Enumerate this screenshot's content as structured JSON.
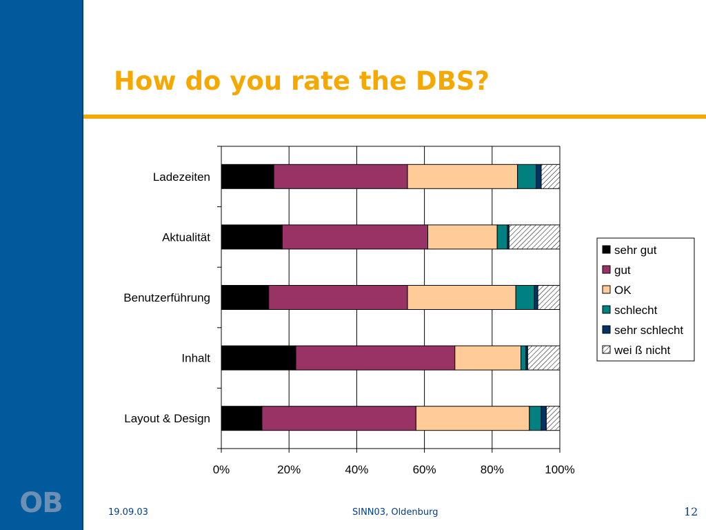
{
  "slide": {
    "title": "How do you rate the DBS?",
    "logo": "OB",
    "footer_date": "19.09.03",
    "footer_center": "SINN03, Oldenburg",
    "page_number": "12",
    "colors": {
      "sidebar": "#005A9C",
      "title": "#F5A800",
      "rule": "#F5A800",
      "footer_text": "#003E8C"
    }
  },
  "chart_data": {
    "type": "bar",
    "orientation": "horizontal",
    "stacked": true,
    "percent_stacked": true,
    "categories": [
      "Ladezeiten",
      "Aktualität",
      "Benutzerführung",
      "Inhalt",
      "Layout & Design"
    ],
    "series": [
      {
        "name": "sehr gut",
        "color": "#000000",
        "values": [
          15.5,
          18,
          14,
          22,
          12
        ]
      },
      {
        "name": "gut",
        "color": "#993366",
        "values": [
          39.5,
          43,
          41,
          47,
          45.5
        ]
      },
      {
        "name": "OK",
        "color": "#FFCC99",
        "values": [
          32.5,
          20.5,
          32,
          19.5,
          33.5
        ]
      },
      {
        "name": "schlecht",
        "color": "#008080",
        "values": [
          5.5,
          3,
          5.5,
          1.5,
          3.5
        ]
      },
      {
        "name": "sehr schlecht",
        "color": "#003366",
        "values": [
          1.5,
          0.5,
          1,
          0.5,
          1.5
        ]
      },
      {
        "name": "weiß nicht",
        "color": "hatch",
        "values": [
          5.5,
          15,
          6.5,
          9.5,
          4
        ]
      }
    ],
    "x_ticks": [
      "0%",
      "20%",
      "40%",
      "60%",
      "80%",
      "100%"
    ],
    "xlim": [
      0,
      100
    ],
    "grid": "vertical",
    "legend": {
      "placement": "right",
      "labels": [
        "sehr gut",
        "gut",
        "OK",
        "schlecht",
        "sehr schlecht",
        "wei ß nicht"
      ]
    }
  }
}
